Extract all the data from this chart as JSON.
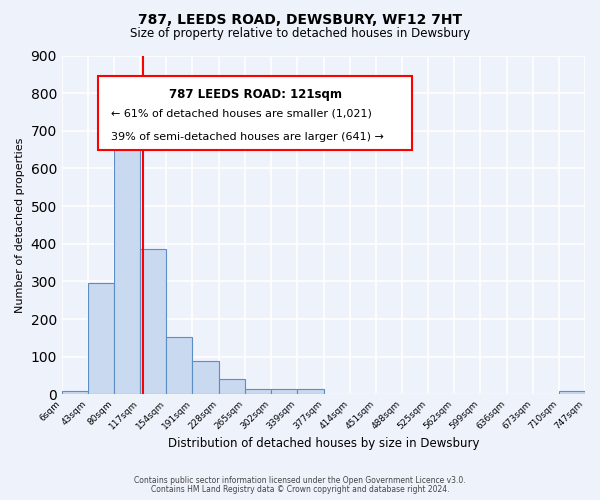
{
  "title": "787, LEEDS ROAD, DEWSBURY, WF12 7HT",
  "subtitle": "Size of property relative to detached houses in Dewsbury",
  "xlabel": "Distribution of detached houses by size in Dewsbury",
  "ylabel": "Number of detached properties",
  "bar_values": [
    10,
    295,
    675,
    385,
    152,
    88,
    40,
    14,
    15,
    14,
    0,
    0,
    0,
    0,
    0,
    0,
    0,
    0,
    0,
    10
  ],
  "bin_edges": [
    6,
    43,
    80,
    117,
    154,
    191,
    228,
    265,
    302,
    339,
    377,
    414,
    451,
    488,
    525,
    562,
    599,
    636,
    673,
    710,
    747
  ],
  "tick_labels": [
    "6sqm",
    "43sqm",
    "80sqm",
    "117sqm",
    "154sqm",
    "191sqm",
    "228sqm",
    "265sqm",
    "302sqm",
    "339sqm",
    "377sqm",
    "414sqm",
    "451sqm",
    "488sqm",
    "525sqm",
    "562sqm",
    "599sqm",
    "636sqm",
    "673sqm",
    "710sqm",
    "747sqm"
  ],
  "bar_color": "#c9d9f0",
  "bar_edge_color": "#5b8ec4",
  "red_line_x": 121,
  "annotation_title": "787 LEEDS ROAD: 121sqm",
  "annotation_line1": "← 61% of detached houses are smaller (1,021)",
  "annotation_line2": "39% of semi-detached houses are larger (641) →",
  "ylim": [
    0,
    900
  ],
  "yticks": [
    0,
    100,
    200,
    300,
    400,
    500,
    600,
    700,
    800,
    900
  ],
  "footer1": "Contains HM Land Registry data © Crown copyright and database right 2024.",
  "footer2": "Contains public sector information licensed under the Open Government Licence v3.0.",
  "bg_color": "#eef2fb",
  "grid_color": "#ffffff"
}
